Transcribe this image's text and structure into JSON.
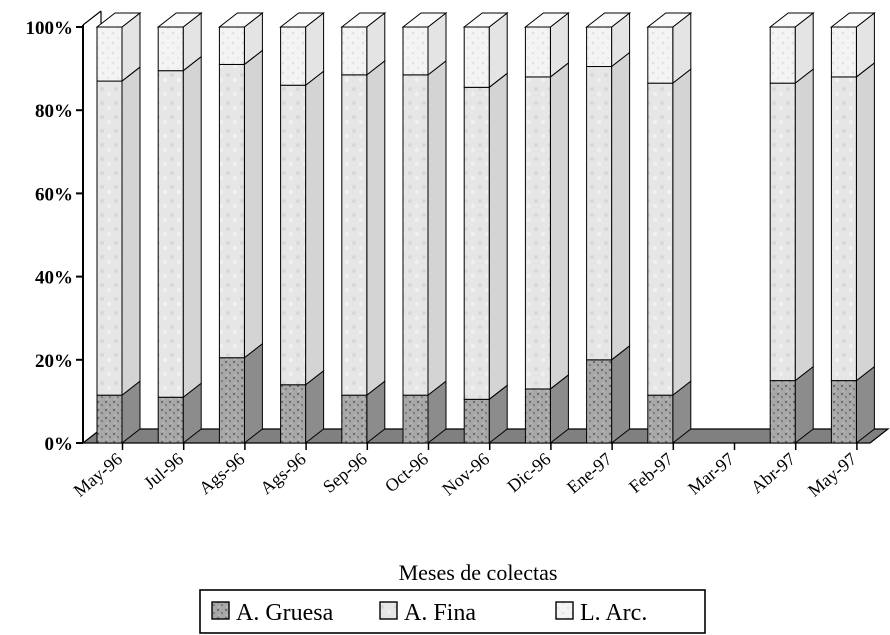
{
  "chart_data": {
    "type": "bar",
    "stacked": true,
    "percent": true,
    "three_d": true,
    "categories": [
      "May-96",
      "Jul-96",
      "Ags-96",
      "Ags-96",
      "Sep-96",
      "Oct-96",
      "Nov-96",
      "Dic-96",
      "Ene-97",
      "Feb-97",
      "Mar-97",
      "Abr-97",
      "May-97"
    ],
    "series": [
      {
        "name": "A. Gruesa",
        "values": [
          11.5,
          11,
          20.5,
          14,
          11.5,
          11.5,
          10.5,
          13,
          20,
          11.5,
          0,
          15,
          15
        ],
        "color": "#9a9a9a"
      },
      {
        "name": "A. Fina",
        "values": [
          75.5,
          78.5,
          70.5,
          72,
          77,
          77,
          75,
          75,
          70.5,
          75,
          0,
          71.5,
          73
        ],
        "color": "#e8e8e8"
      },
      {
        "name": "L. Arc.",
        "values": [
          13,
          10.5,
          9,
          14,
          11.5,
          11.5,
          14.5,
          12,
          9.5,
          13.5,
          0,
          13.5,
          12
        ],
        "color": "#f4f4f4"
      }
    ],
    "ylim": [
      0,
      100
    ],
    "yticks": [
      "0%",
      "20%",
      "40%",
      "60%",
      "80%",
      "100%"
    ],
    "xlabel": "Meses de colectas",
    "ylabel": "",
    "title": "",
    "legend_position": "bottom",
    "floor_color": "#808080"
  }
}
